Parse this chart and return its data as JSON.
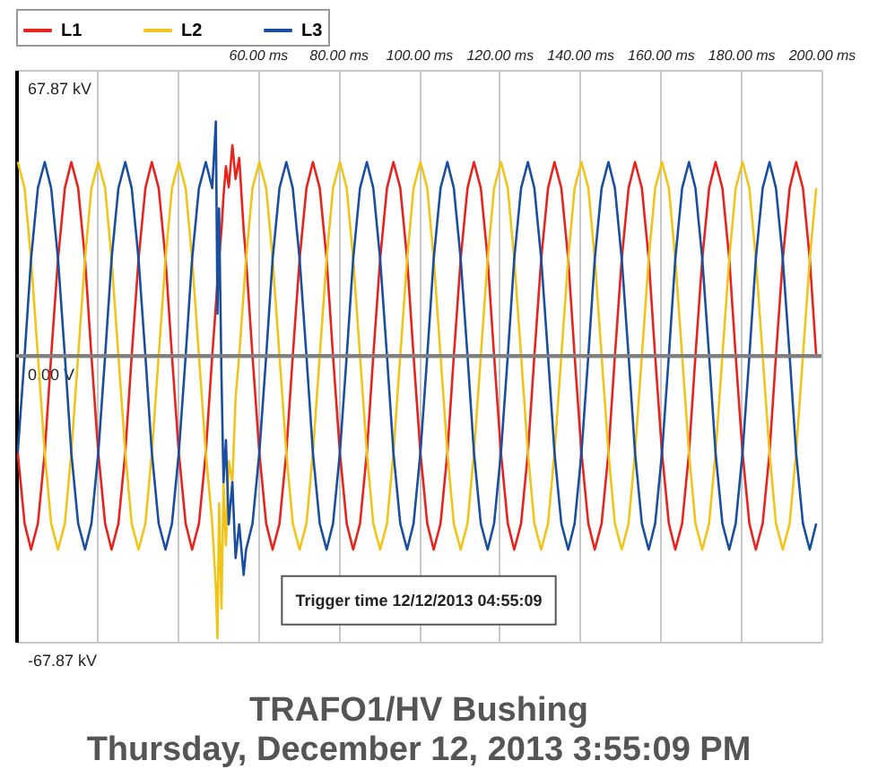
{
  "chart_data": {
    "type": "line",
    "title": "TRAFO1/HV Bushing",
    "subtitle": "Thursday, December 12, 2013 3:55:09 PM",
    "annotations": [
      "Trigger time 12/12/2013 04:55:09"
    ],
    "x": [
      0.4,
      2.1,
      3.7,
      5.4,
      7.1,
      8.7,
      10.4,
      12.1,
      13.7,
      15.4,
      17.1,
      18.7,
      20.4,
      22.1,
      23.7,
      25.4,
      27.1,
      28.7,
      30.4,
      32.1,
      33.7,
      35.4,
      37.1,
      38.7,
      40.4,
      42.1,
      43.7,
      45.4,
      47.1,
      48.7,
      49.6,
      50.0,
      50.4,
      51.0,
      51.5,
      52.1,
      52.8,
      53.7,
      54.5,
      55.4,
      56.5,
      57.1,
      58.7,
      60.4,
      62.1,
      63.7,
      65.4,
      67.1,
      68.7,
      70.4,
      72.1,
      73.7,
      75.4,
      77.1,
      78.7,
      80.4,
      82.1,
      83.7,
      85.4,
      87.1,
      88.7,
      90.4,
      92.1,
      93.7,
      95.4,
      97.1,
      98.7,
      100.4,
      102.1,
      103.7,
      105.4,
      107.1,
      108.7,
      110.4,
      112.1,
      113.7,
      115.4,
      117.1,
      118.7,
      120.4,
      122.1,
      123.7,
      125.4,
      127.1,
      128.7,
      130.4,
      132.1,
      133.7,
      135.4,
      137.1,
      138.7,
      140.4,
      142.1,
      143.7,
      145.4,
      147.1,
      148.7,
      150.4,
      152.1,
      153.7,
      155.4,
      157.1,
      158.7,
      160.4,
      162.1,
      163.7,
      165.4,
      167.1,
      168.7,
      170.4,
      172.1,
      173.7,
      175.4,
      177.1,
      178.7,
      180.4,
      182.1,
      183.7,
      185.4,
      187.1,
      188.7,
      190.4,
      192.1,
      193.7,
      195.4,
      197.1,
      198.7
    ],
    "series": [
      {
        "name": "L1",
        "color": "#e8231e",
        "values": [
          -23,
          -39.8,
          -46,
          -39.8,
          -23,
          0,
          23,
          39.8,
          46,
          39.8,
          23,
          0,
          -23,
          -39.8,
          -46,
          -39.8,
          -23,
          0,
          23,
          39.8,
          46,
          39.8,
          23,
          0,
          -23,
          -39.8,
          -46,
          -39.8,
          -23,
          0,
          12,
          18,
          23,
          30,
          38,
          45,
          40,
          50,
          42,
          47,
          30,
          23,
          0,
          -23,
          -39.8,
          -46,
          -39.8,
          -23,
          0,
          23,
          39.8,
          46,
          39.8,
          23,
          0,
          -23,
          -39.8,
          -46,
          -39.8,
          -23,
          0,
          23,
          39.8,
          46,
          39.8,
          23,
          0,
          -23,
          -39.8,
          -46,
          -39.8,
          -23,
          0,
          23,
          39.8,
          46,
          39.8,
          23,
          0,
          -23,
          -39.8,
          -46,
          -39.8,
          -23,
          0,
          23,
          39.8,
          46,
          39.8,
          23,
          0,
          -23,
          -39.8,
          -46,
          -39.8,
          -23,
          0,
          23,
          39.8,
          46,
          39.8,
          23,
          0,
          -23,
          -39.8,
          -46,
          -39.8,
          -23,
          0,
          23,
          39.8,
          46,
          39.8,
          23,
          0,
          -23,
          -39.8,
          -46,
          -39.8,
          -23,
          0,
          23,
          39.8,
          46,
          39.8,
          23,
          0
        ]
      },
      {
        "name": "L2",
        "color": "#f0c419",
        "values": [
          46,
          39.8,
          23,
          0,
          -23,
          -39.8,
          -46,
          -39.8,
          -23,
          0,
          23,
          39.8,
          46,
          39.8,
          23,
          0,
          -23,
          -39.8,
          -46,
          -39.8,
          -23,
          0,
          23,
          39.8,
          46,
          39.8,
          23,
          0,
          -23,
          -39.8,
          -55,
          -67,
          -35,
          -60,
          -30,
          -45,
          -25,
          -30,
          -10,
          0,
          15,
          23,
          39.8,
          46,
          39.8,
          23,
          0,
          -23,
          -39.8,
          -46,
          -39.8,
          -23,
          0,
          23,
          39.8,
          46,
          39.8,
          23,
          0,
          -23,
          -39.8,
          -46,
          -39.8,
          -23,
          0,
          23,
          39.8,
          46,
          39.8,
          23,
          0,
          -23,
          -39.8,
          -46,
          -39.8,
          -23,
          0,
          23,
          39.8,
          46,
          39.8,
          23,
          0,
          -23,
          -39.8,
          -46,
          -39.8,
          -23,
          0,
          23,
          39.8,
          46,
          39.8,
          23,
          0,
          -23,
          -39.8,
          -46,
          -39.8,
          -23,
          0,
          23,
          39.8,
          46,
          39.8,
          23,
          0,
          -23,
          -39.8,
          -46,
          -39.8,
          -23,
          0,
          23,
          39.8,
          46,
          39.8,
          23,
          0,
          -23,
          -39.8,
          -46,
          -39.8,
          -23,
          0,
          23,
          39.8
        ]
      },
      {
        "name": "L3",
        "color": "#1a4fa0",
        "values": [
          -23,
          0,
          23,
          39.8,
          46,
          39.8,
          23,
          0,
          -23,
          -39.8,
          -46,
          -39.8,
          -23,
          0,
          23,
          39.8,
          46,
          39.8,
          23,
          0,
          -23,
          -39.8,
          -46,
          -39.8,
          -23,
          0,
          23,
          39.8,
          46,
          39.8,
          55.6,
          10,
          35,
          -5,
          -30,
          -20,
          -40,
          -30,
          -48,
          -40,
          -52,
          -46,
          -39.8,
          -23,
          0,
          23,
          39.8,
          46,
          39.8,
          23,
          0,
          -23,
          -39.8,
          -46,
          -39.8,
          -23,
          0,
          23,
          39.8,
          46,
          39.8,
          23,
          0,
          -23,
          -39.8,
          -46,
          -39.8,
          -23,
          0,
          23,
          39.8,
          46,
          39.8,
          23,
          0,
          -23,
          -39.8,
          -46,
          -39.8,
          -23,
          0,
          23,
          39.8,
          46,
          39.8,
          23,
          0,
          -23,
          -39.8,
          -46,
          -39.8,
          -23,
          0,
          23,
          39.8,
          46,
          39.8,
          23,
          0,
          -23,
          -39.8,
          -46,
          -39.8,
          -23,
          0,
          23,
          39.8,
          46,
          39.8,
          23,
          0,
          -23,
          -39.8,
          -46,
          -39.8,
          -23,
          0,
          23,
          39.8,
          46,
          39.8,
          23,
          0,
          -23,
          -39.8,
          -46,
          -39.8
        ]
      }
    ],
    "xlim": [
      0,
      200
    ],
    "xticks": [
      {
        "value": 20,
        "label": null
      },
      {
        "value": 40,
        "label": null
      },
      {
        "value": 60,
        "label": "60.00 ms"
      },
      {
        "value": 80,
        "label": "80.00 ms"
      },
      {
        "value": 100,
        "label": "100.00 ms"
      },
      {
        "value": 120,
        "label": "120.00 ms"
      },
      {
        "value": 140,
        "label": "140.00 ms"
      },
      {
        "value": 160,
        "label": "160.00 ms"
      },
      {
        "value": 180,
        "label": "180.00 ms"
      },
      {
        "value": 200,
        "label": "200.00 ms"
      }
    ],
    "ylim": [
      -67.87,
      67.87
    ],
    "yticks": [
      {
        "value": -67.87,
        "label": "-67.87 kV"
      },
      {
        "value": 0,
        "label": "0.00 V"
      },
      {
        "value": 67.87,
        "label": "67.87 kV"
      }
    ],
    "ref_lines": [
      {
        "axis": "y",
        "value": 0,
        "color": "#808080"
      }
    ],
    "grid": true,
    "legend": "top",
    "marker": "none",
    "line_style": "solid"
  }
}
